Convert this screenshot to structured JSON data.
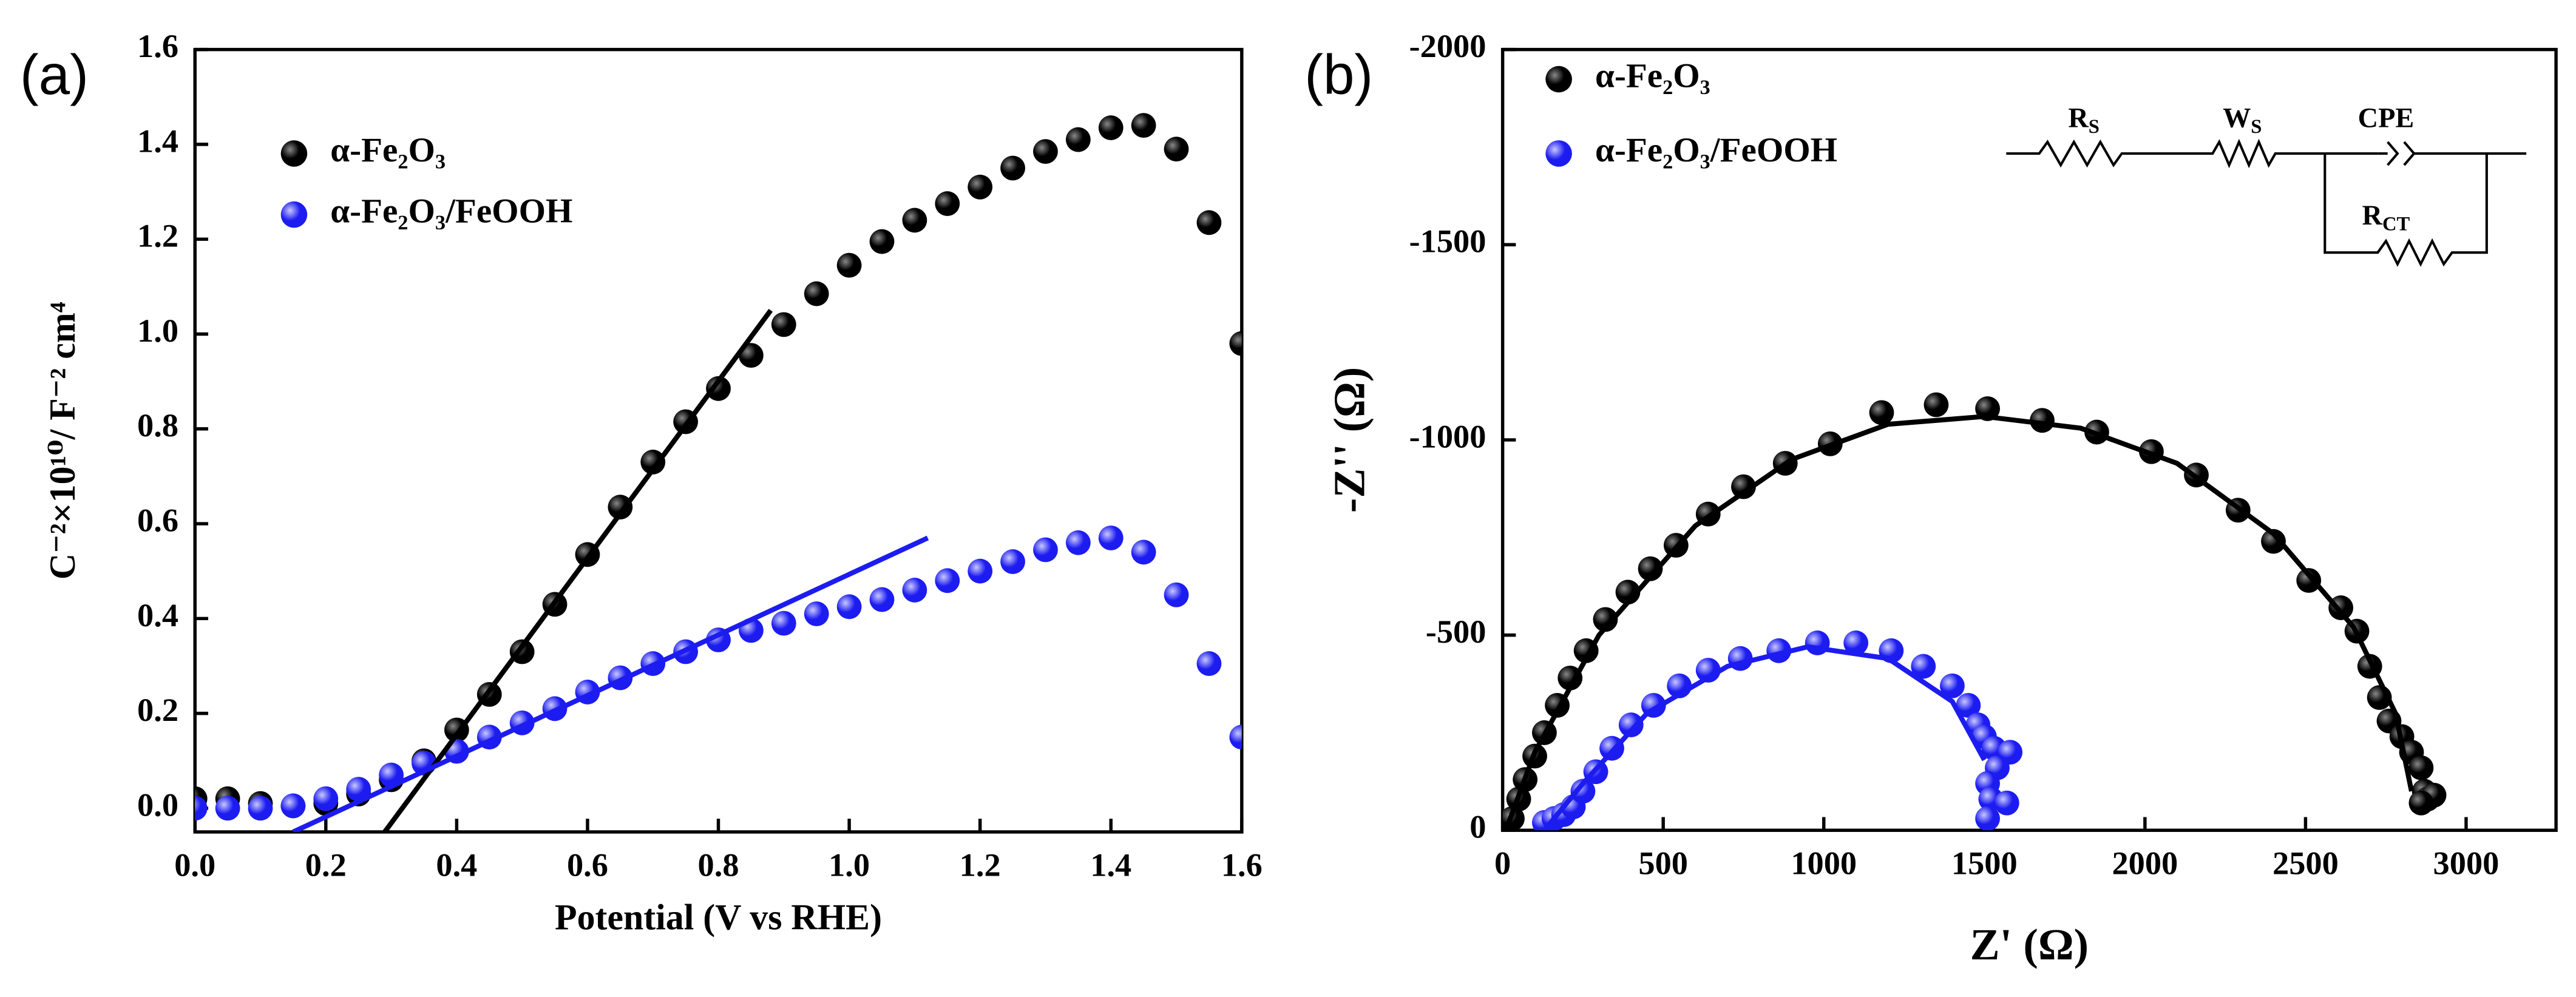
{
  "chart_data": [
    {
      "type": "scatter",
      "panel": "(a)",
      "xlabel": "Potential (V vs RHE)",
      "ylabel": "C⁻²×10¹⁰/ F⁻² cm⁴",
      "xlim": [
        0,
        1.6
      ],
      "ylim": [
        -0.05,
        1.6
      ],
      "xticks": [
        {
          "value": 0,
          "label": "0.0"
        },
        0.2,
        0.4,
        0.6,
        0.8,
        {
          "value": 1,
          "label": "1.0"
        },
        1.2,
        1.4,
        1.6
      ],
      "yticks": [
        {
          "value": 0,
          "label": "0.0"
        },
        0.2,
        0.4,
        0.6,
        0.8,
        {
          "value": 1,
          "label": "1.0"
        },
        1.2,
        1.4,
        1.6
      ],
      "series": [
        {
          "name": "α-Fe₂O₃",
          "color": "#000000",
          "mode": "markers",
          "x": [
            0,
            0.05,
            0.1,
            0.15,
            0.2,
            0.25,
            0.3,
            0.35,
            0.4,
            0.45,
            0.5,
            0.55,
            0.6,
            0.65,
            0.7,
            0.75,
            0.8,
            0.85,
            0.9,
            0.95,
            1.0,
            1.05,
            1.1,
            1.15,
            1.2,
            1.25,
            1.3,
            1.35,
            1.4,
            1.45,
            1.5,
            1.55,
            1.6
          ],
          "values": [
            0.02,
            0.02,
            0.01,
            0.005,
            0.01,
            0.03,
            0.06,
            0.1,
            0.165,
            0.24,
            0.33,
            0.43,
            0.535,
            0.635,
            0.73,
            0.815,
            0.885,
            0.955,
            1.02,
            1.085,
            1.145,
            1.195,
            1.24,
            1.275,
            1.31,
            1.35,
            1.385,
            1.41,
            1.435,
            1.44,
            1.39,
            1.235,
            0.98
          ]
        },
        {
          "name": "α-Fe₂O₃/FeOOH",
          "color": "#1c1cf0",
          "mode": "markers",
          "x": [
            0,
            0.05,
            0.1,
            0.15,
            0.2,
            0.25,
            0.3,
            0.35,
            0.4,
            0.45,
            0.5,
            0.55,
            0.6,
            0.65,
            0.7,
            0.75,
            0.8,
            0.85,
            0.9,
            0.95,
            1.0,
            1.05,
            1.1,
            1.15,
            1.2,
            1.25,
            1.3,
            1.35,
            1.4,
            1.45,
            1.5,
            1.55,
            1.6
          ],
          "values": [
            0,
            0,
            0,
            0.005,
            0.02,
            0.04,
            0.07,
            0.095,
            0.12,
            0.15,
            0.18,
            0.21,
            0.245,
            0.275,
            0.305,
            0.33,
            0.355,
            0.375,
            0.39,
            0.41,
            0.425,
            0.44,
            0.46,
            0.48,
            0.5,
            0.52,
            0.545,
            0.56,
            0.57,
            0.54,
            0.45,
            0.305,
            0.15
          ]
        },
        {
          "color": "#000000",
          "mode": "line",
          "x": [
            0.29,
            0.88
          ],
          "values": [
            -0.05,
            1.05
          ]
        },
        {
          "color": "#1c1cf0",
          "mode": "line",
          "x": [
            0.15,
            1.12
          ],
          "values": [
            -0.05,
            0.57
          ]
        }
      ]
    },
    {
      "type": "scatter",
      "panel": "(b)",
      "xlabel": "Z' (Ω)",
      "ylabel": "-Z'' (Ω)",
      "xlim": [
        0,
        3280
      ],
      "ylim": [
        0,
        -2000
      ],
      "xticks": [
        0,
        500,
        1000,
        1500,
        2000,
        2500,
        3000
      ],
      "yticks": [
        0,
        -500,
        -1000,
        -1500,
        -2000
      ],
      "annotations": [
        {
          "text": "R",
          "sub": "S"
        },
        {
          "text": "W",
          "sub": "S"
        },
        {
          "text": "CPE",
          "sub": ""
        },
        {
          "text": "R",
          "sub": "CT"
        }
      ],
      "series": [
        {
          "name": "α-Fe₂O₃",
          "color": "#000000",
          "mode": "markers",
          "x": [
            30,
            50,
            70,
            100,
            130,
            170,
            210,
            260,
            320,
            390,
            460,
            540,
            640,
            750,
            880,
            1020,
            1180,
            1350,
            1510,
            1680,
            1850,
            2020,
            2160,
            2290,
            2400,
            2510,
            2610,
            2660,
            2700,
            2730,
            2760,
            2800,
            2830,
            2860,
            2870,
            2880,
            2900,
            2860
          ],
          "values": [
            -30,
            -80,
            -130,
            -190,
            -250,
            -320,
            -390,
            -460,
            -540,
            -610,
            -670,
            -730,
            -810,
            -880,
            -940,
            -990,
            -1070,
            -1090,
            -1080,
            -1050,
            -1020,
            -970,
            -910,
            -820,
            -740,
            -640,
            -570,
            -510,
            -420,
            -340,
            -280,
            -240,
            -200,
            -160,
            -100,
            -80,
            -90,
            -70
          ]
        },
        {
          "name": "α-Fe₂O₃/FeOOH",
          "color": "#1c1cf0",
          "mode": "markers",
          "x": [
            130,
            160,
            190,
            220,
            250,
            290,
            340,
            400,
            470,
            550,
            640,
            740,
            860,
            980,
            1100,
            1210,
            1310,
            1400,
            1450,
            1480,
            1500,
            1530,
            1580,
            1540,
            1510,
            1520,
            1570,
            1510
          ],
          "values": [
            -20,
            -30,
            -40,
            -60,
            -100,
            -150,
            -210,
            -270,
            -320,
            -370,
            -410,
            -440,
            -460,
            -480,
            -480,
            -460,
            -420,
            -370,
            -320,
            -270,
            -240,
            -210,
            -200,
            -160,
            -120,
            -80,
            -70,
            -30
          ]
        },
        {
          "color": "#000000",
          "mode": "line",
          "x": [
            10,
            100,
            300,
            600,
            900,
            1200,
            1500,
            1800,
            2100,
            2400,
            2650,
            2780,
            2830
          ],
          "values": [
            0,
            -200,
            -500,
            -780,
            -950,
            -1040,
            -1060,
            -1030,
            -940,
            -760,
            -520,
            -300,
            -100
          ]
        },
        {
          "color": "#1c1cf0",
          "mode": "line",
          "x": [
            130,
            250,
            450,
            700,
            950,
            1200,
            1400,
            1500
          ],
          "values": [
            0,
            -120,
            -300,
            -420,
            -470,
            -440,
            -330,
            -180
          ]
        }
      ]
    }
  ]
}
